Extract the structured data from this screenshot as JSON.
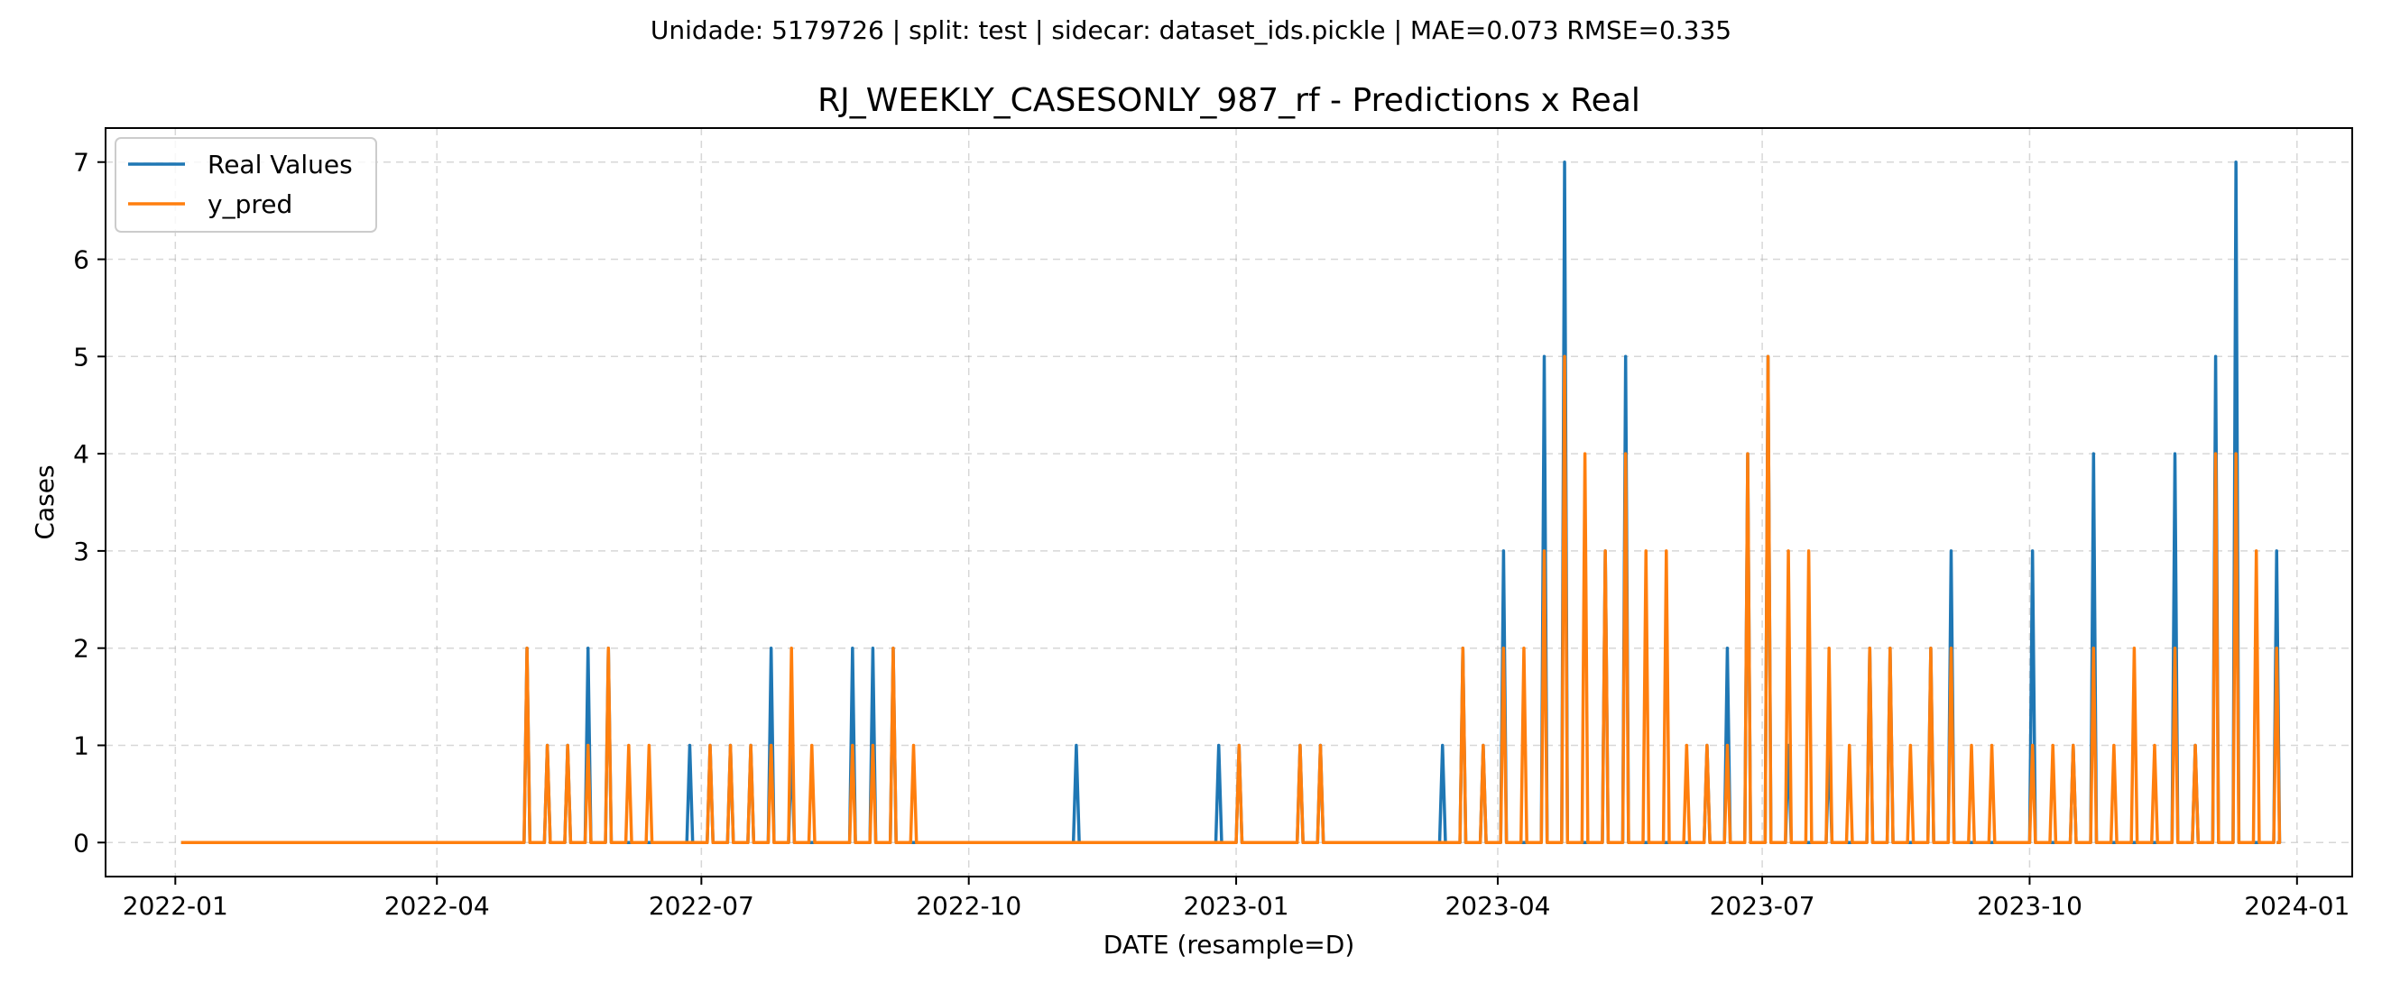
{
  "suptitle": "Unidade: 5179726 | split: test | sidecar: dataset_ids.pickle | MAE=0.073  RMSE=0.335",
  "chart_data": {
    "type": "line",
    "title": "RJ_WEEKLY_CASESONLY_987_rf - Predictions x Real",
    "xlabel": "DATE (resample=D)",
    "ylabel": "Cases",
    "x_range": [
      "2022-01-03",
      "2023-12-25"
    ],
    "xlim": [
      "2021-12-08",
      "2024-01-20"
    ],
    "ylim": [
      -0.35,
      7.35
    ],
    "x_ticks": [
      "2022-01",
      "2022-04",
      "2022-07",
      "2022-10",
      "2023-01",
      "2023-04",
      "2023-07",
      "2023-10",
      "2024-01"
    ],
    "y_ticks": [
      0,
      1,
      2,
      3,
      4,
      5,
      6,
      7
    ],
    "grid": true,
    "legend_position": "upper-left",
    "baseline": 0,
    "series": [
      {
        "name": "Real Values",
        "color": "#1f77b4",
        "points": [
          [
            "2022-05-02",
            2
          ],
          [
            "2022-05-09",
            1
          ],
          [
            "2022-05-16",
            1
          ],
          [
            "2022-05-23",
            2
          ],
          [
            "2022-05-30",
            2
          ],
          [
            "2022-06-27",
            1
          ],
          [
            "2022-07-04",
            1
          ],
          [
            "2022-07-11",
            1
          ],
          [
            "2022-07-18",
            1
          ],
          [
            "2022-07-25",
            2
          ],
          [
            "2022-08-01",
            1
          ],
          [
            "2022-08-22",
            2
          ],
          [
            "2022-08-29",
            2
          ],
          [
            "2022-09-05",
            2
          ],
          [
            "2022-11-07",
            1
          ],
          [
            "2022-12-26",
            1
          ],
          [
            "2023-01-02",
            1
          ],
          [
            "2023-01-23",
            1
          ],
          [
            "2023-01-30",
            1
          ],
          [
            "2023-03-13",
            1
          ],
          [
            "2023-03-20",
            2
          ],
          [
            "2023-03-27",
            1
          ],
          [
            "2023-04-03",
            3
          ],
          [
            "2023-04-17",
            5
          ],
          [
            "2023-04-24",
            7
          ],
          [
            "2023-05-08",
            3
          ],
          [
            "2023-05-15",
            5
          ],
          [
            "2023-06-12",
            1
          ],
          [
            "2023-06-19",
            2
          ],
          [
            "2023-06-26",
            4
          ],
          [
            "2023-07-03",
            5
          ],
          [
            "2023-07-10",
            1
          ],
          [
            "2023-07-24",
            1
          ],
          [
            "2023-08-07",
            2
          ],
          [
            "2023-08-14",
            2
          ],
          [
            "2023-08-28",
            2
          ],
          [
            "2023-09-04",
            3
          ],
          [
            "2023-10-02",
            3
          ],
          [
            "2023-10-16",
            1
          ],
          [
            "2023-10-23",
            4
          ],
          [
            "2023-11-20",
            4
          ],
          [
            "2023-11-27",
            1
          ],
          [
            "2023-12-04",
            5
          ],
          [
            "2023-12-11",
            7
          ],
          [
            "2023-12-25",
            3
          ]
        ]
      },
      {
        "name": "y_pred",
        "color": "#ff7f0e",
        "points": [
          [
            "2022-05-02",
            2
          ],
          [
            "2022-05-09",
            1
          ],
          [
            "2022-05-16",
            1
          ],
          [
            "2022-05-23",
            1
          ],
          [
            "2022-05-30",
            2
          ],
          [
            "2022-06-06",
            1
          ],
          [
            "2022-06-13",
            1
          ],
          [
            "2022-07-04",
            1
          ],
          [
            "2022-07-11",
            1
          ],
          [
            "2022-07-18",
            1
          ],
          [
            "2022-07-25",
            1
          ],
          [
            "2022-08-01",
            2
          ],
          [
            "2022-08-08",
            1
          ],
          [
            "2022-08-22",
            1
          ],
          [
            "2022-08-29",
            1
          ],
          [
            "2022-09-05",
            2
          ],
          [
            "2022-09-12",
            1
          ],
          [
            "2023-01-02",
            1
          ],
          [
            "2023-01-23",
            1
          ],
          [
            "2023-01-30",
            1
          ],
          [
            "2023-03-20",
            2
          ],
          [
            "2023-03-27",
            1
          ],
          [
            "2023-04-03",
            2
          ],
          [
            "2023-04-10",
            2
          ],
          [
            "2023-04-17",
            3
          ],
          [
            "2023-04-24",
            5
          ],
          [
            "2023-05-01",
            4
          ],
          [
            "2023-05-08",
            3
          ],
          [
            "2023-05-15",
            4
          ],
          [
            "2023-05-22",
            3
          ],
          [
            "2023-05-29",
            3
          ],
          [
            "2023-06-05",
            1
          ],
          [
            "2023-06-12",
            1
          ],
          [
            "2023-06-19",
            1
          ],
          [
            "2023-06-26",
            4
          ],
          [
            "2023-07-03",
            5
          ],
          [
            "2023-07-10",
            3
          ],
          [
            "2023-07-17",
            3
          ],
          [
            "2023-07-24",
            2
          ],
          [
            "2023-07-31",
            1
          ],
          [
            "2023-08-07",
            2
          ],
          [
            "2023-08-14",
            2
          ],
          [
            "2023-08-21",
            1
          ],
          [
            "2023-08-28",
            2
          ],
          [
            "2023-09-04",
            2
          ],
          [
            "2023-09-11",
            1
          ],
          [
            "2023-09-18",
            1
          ],
          [
            "2023-10-02",
            1
          ],
          [
            "2023-10-09",
            1
          ],
          [
            "2023-10-16",
            1
          ],
          [
            "2023-10-23",
            2
          ],
          [
            "2023-10-30",
            1
          ],
          [
            "2023-11-06",
            2
          ],
          [
            "2023-11-13",
            1
          ],
          [
            "2023-11-20",
            2
          ],
          [
            "2023-11-27",
            1
          ],
          [
            "2023-12-04",
            4
          ],
          [
            "2023-12-11",
            4
          ],
          [
            "2023-12-18",
            3
          ],
          [
            "2023-12-25",
            2
          ]
        ]
      }
    ]
  }
}
